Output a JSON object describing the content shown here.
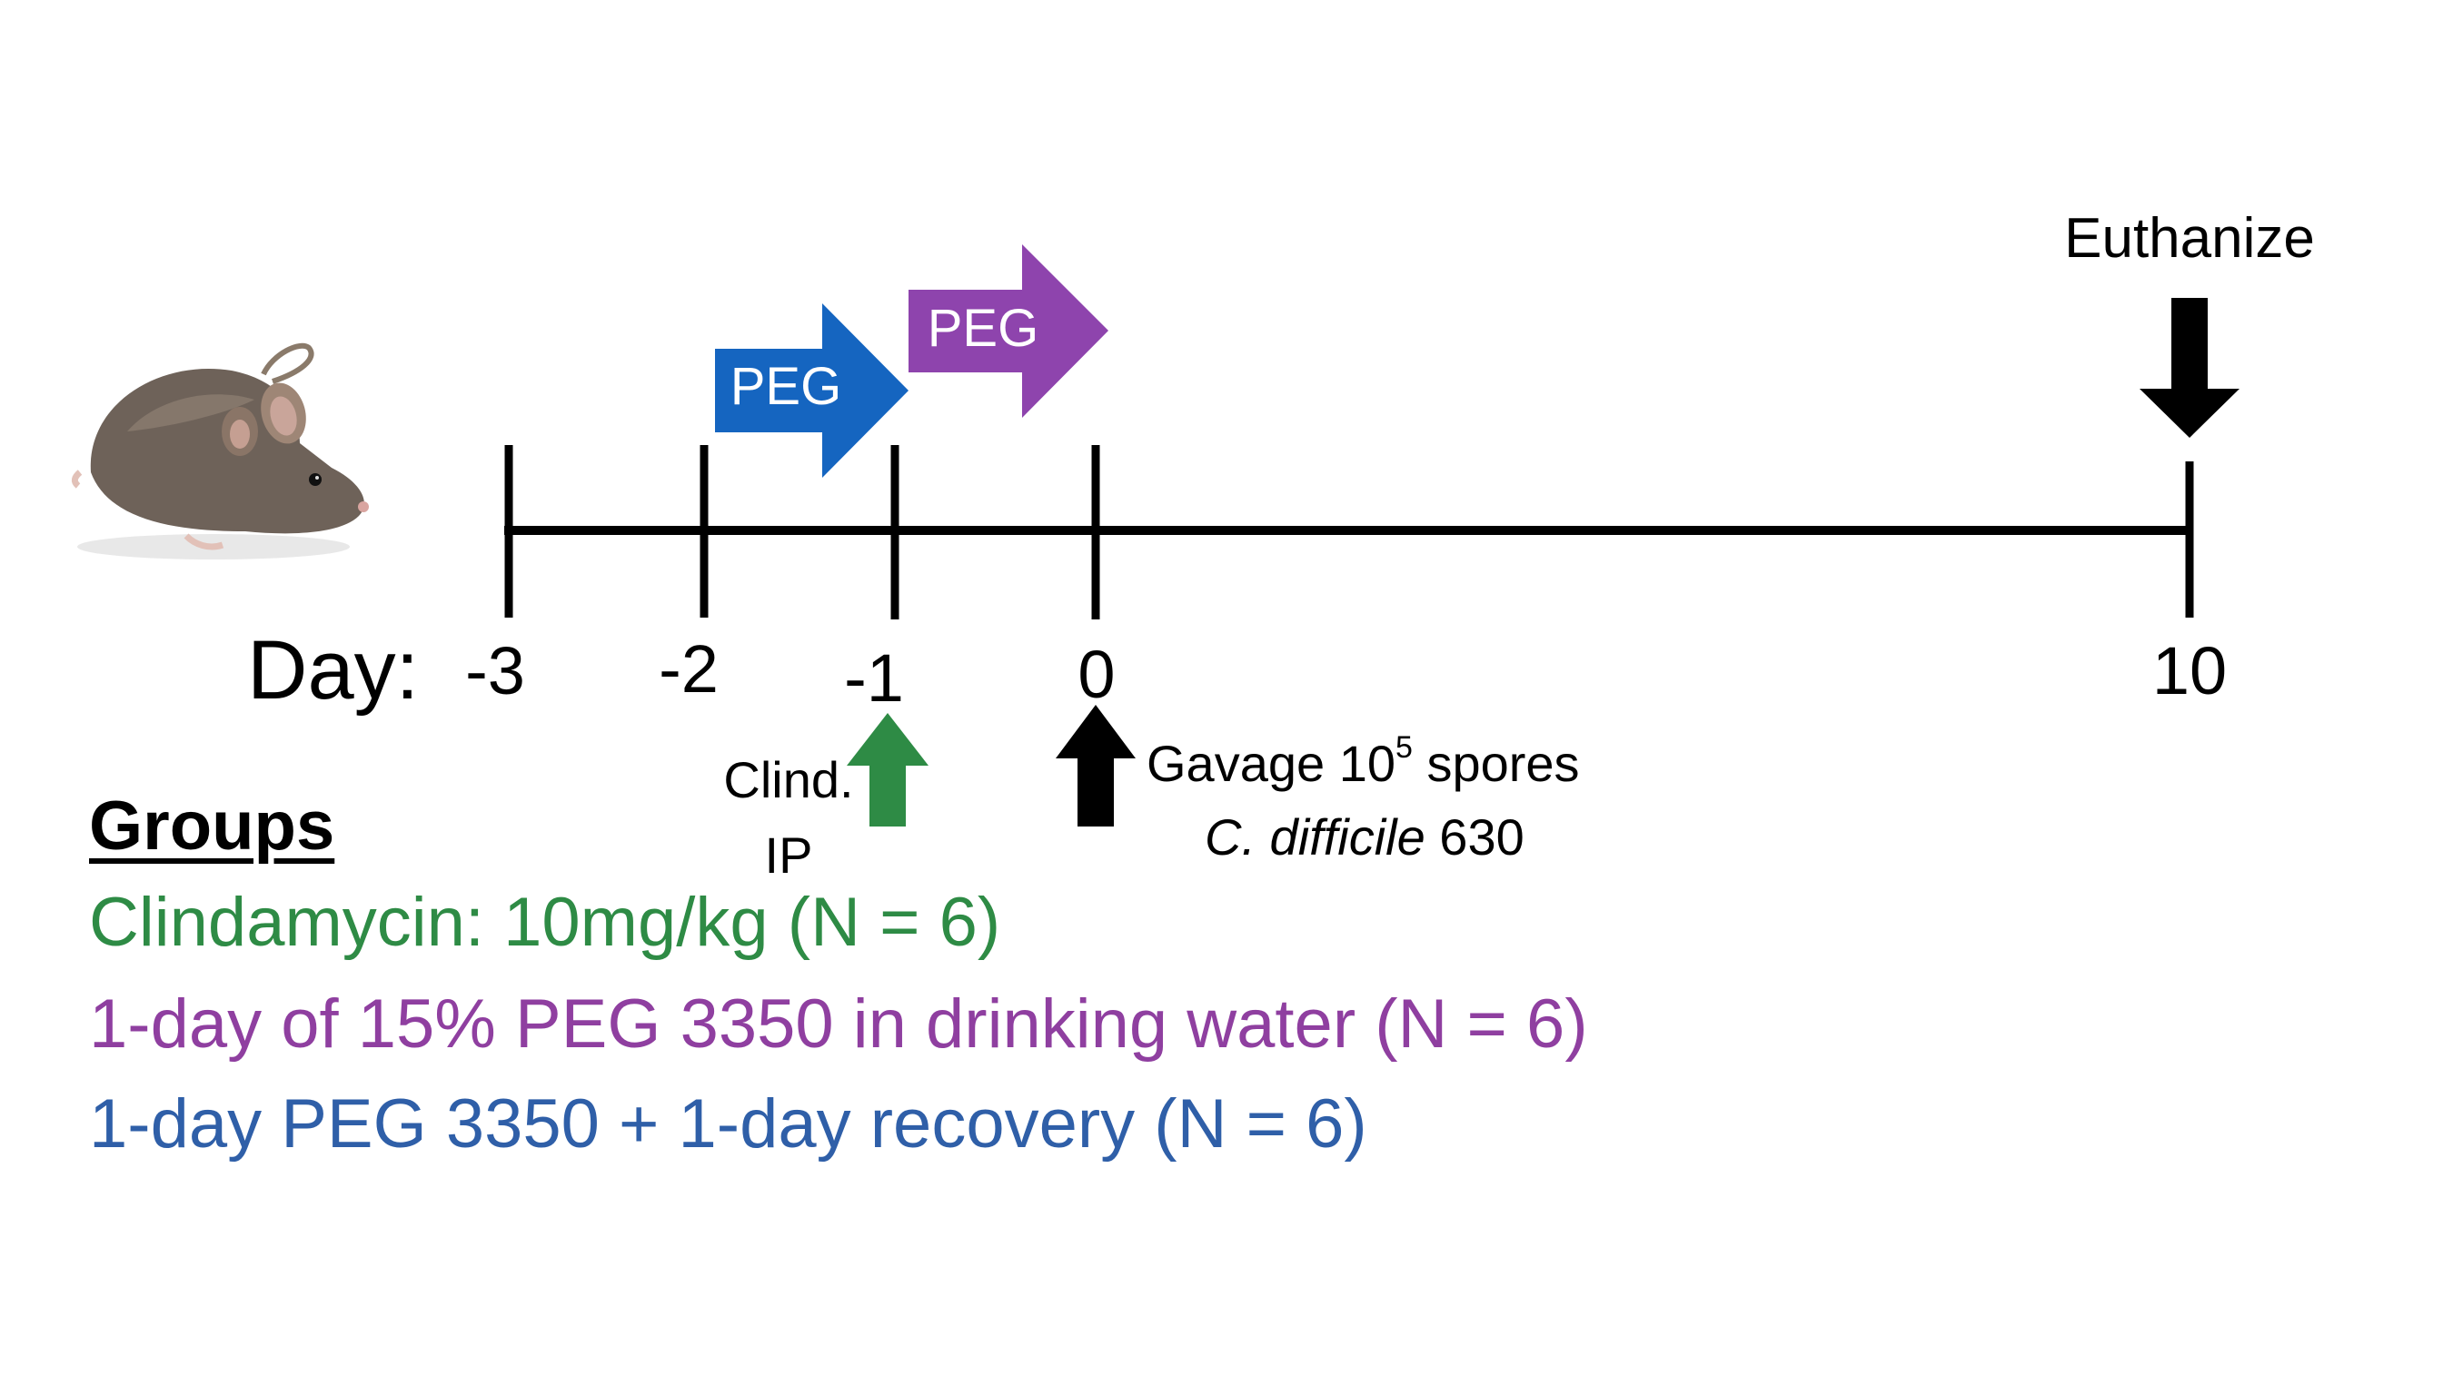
{
  "timeline": {
    "day_label": "Day:",
    "ticks": [
      {
        "label": "-3"
      },
      {
        "label": "-2"
      },
      {
        "label": "-1"
      },
      {
        "label": "0"
      },
      {
        "label": "10"
      }
    ]
  },
  "treatments": {
    "peg_1": {
      "label": "PEG",
      "color": "#1565c0"
    },
    "peg_2": {
      "label": "PEG",
      "color": "#8e44ad"
    }
  },
  "events": {
    "euthanize": {
      "label": "Euthanize",
      "color": "#000000"
    },
    "clindamycin": {
      "line1": "Clind.",
      "line2": "IP",
      "color": "#2e8b45"
    },
    "gavage": {
      "prefix": "Gavage 10",
      "exponent": "5",
      "suffix": " spores",
      "species": "C. difficile",
      "strain": " 630",
      "color": "#000000"
    }
  },
  "groups": {
    "title": "Groups",
    "items": [
      {
        "text": "Clindamycin: 10mg/kg (N = 6)",
        "color": "#2e8b45"
      },
      {
        "text": "1-day of 15% PEG 3350 in drinking water (N = 6)",
        "color": "#8f3fa0"
      },
      {
        "text": "1-day PEG 3350 + 1-day recovery (N = 6)",
        "color": "#2f5fa8"
      }
    ]
  },
  "icons": {
    "mouse": "mouse-icon"
  }
}
